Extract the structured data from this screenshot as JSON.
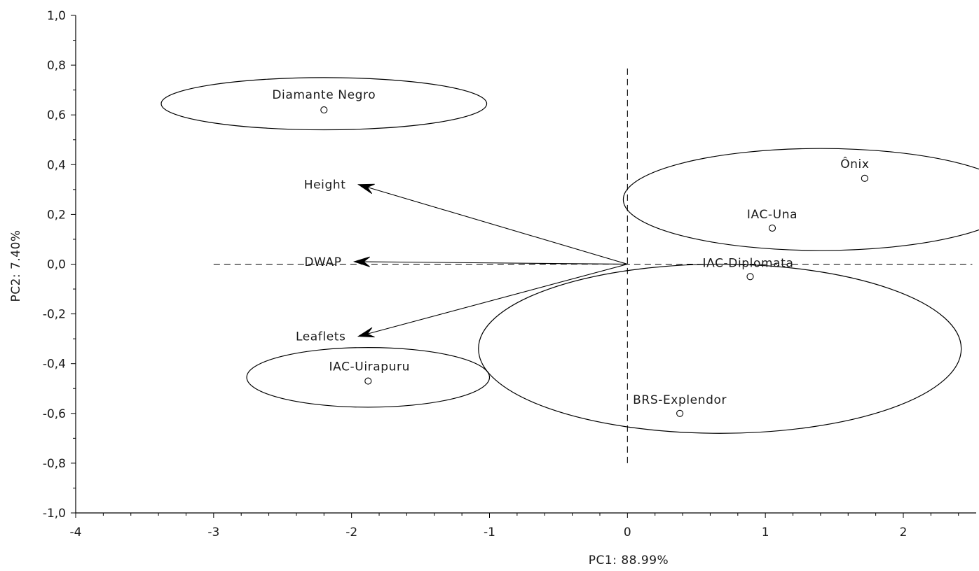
{
  "chart_data": {
    "type": "scatter",
    "subtype": "pca-biplot",
    "xlabel": "PC1: 88.99%",
    "ylabel": "PC2:  7.40%",
    "xlim": [
      -4,
      2.5
    ],
    "ylim": [
      -1.0,
      1.0
    ],
    "x_ticks": [
      -4,
      -3,
      -2,
      -1,
      0,
      1,
      2
    ],
    "x_tick_labels": [
      "-4",
      "-3",
      "-2",
      "-1",
      "0",
      "1",
      "2"
    ],
    "y_ticks": [
      -1.0,
      -0.8,
      -0.6,
      -0.4,
      -0.2,
      0.0,
      0.2,
      0.4,
      0.6,
      0.8,
      1.0
    ],
    "y_tick_labels": [
      "-1,0",
      "-0,8",
      "-0,6",
      "-0,4",
      "-0,2",
      "0,0",
      "0,2",
      "0,4",
      "0,6",
      "0,8",
      "1,0"
    ],
    "grid": false,
    "reference_lines": {
      "horizontal": {
        "y": 0,
        "x_from": -3.0,
        "x_to": 2.5
      },
      "vertical": {
        "x": 0,
        "y_from": -0.8,
        "y_to": 0.8
      }
    },
    "points": [
      {
        "label": "Diamante Negro",
        "x": -2.2,
        "y": 0.62
      },
      {
        "label": "Ônix",
        "x": 1.72,
        "y": 0.345
      },
      {
        "label": "IAC-Una",
        "x": 1.05,
        "y": 0.145
      },
      {
        "label": "IAC-Diplomata",
        "x": 0.89,
        "y": -0.05
      },
      {
        "label": "IAC-Uirapuru",
        "x": -1.88,
        "y": -0.47
      },
      {
        "label": "BRS-Explendor",
        "x": 0.38,
        "y": -0.6
      }
    ],
    "loadings": [
      {
        "label": "Height",
        "x": -1.95,
        "y": 0.32
      },
      {
        "label": "DWAP",
        "x": -1.98,
        "y": 0.01
      },
      {
        "label": "Leaflets",
        "x": -1.95,
        "y": -0.29
      }
    ],
    "groups": [
      {
        "members": [
          "Diamante Negro"
        ],
        "cx": -2.2,
        "cy": 0.645,
        "rx": 1.18,
        "ry": 0.105
      },
      {
        "members": [
          "Ônix",
          "IAC-Una"
        ],
        "cx": 1.4,
        "cy": 0.26,
        "rx": 1.43,
        "ry": 0.205
      },
      {
        "members": [
          "IAC-Diplomata",
          "BRS-Explendor"
        ],
        "cx": 0.67,
        "cy": -0.34,
        "rx": 1.75,
        "ry": 0.34
      },
      {
        "members": [
          "IAC-Uirapuru"
        ],
        "cx": -1.88,
        "cy": -0.455,
        "rx": 0.88,
        "ry": 0.12
      }
    ]
  }
}
